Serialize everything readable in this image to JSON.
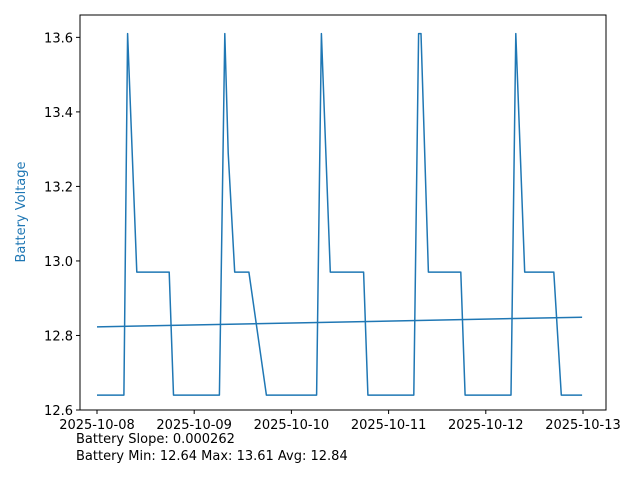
{
  "chart_data": {
    "type": "line",
    "title": "",
    "xlabel": "",
    "ylabel": "Battery Voltage",
    "ylabel_color": "#1f77b4",
    "series_color": "#1f77b4",
    "xlim": [
      "2025-10-08",
      "2025-10-13"
    ],
    "ylim": [
      12.6,
      13.66
    ],
    "x_ticks": [
      "2025-10-08",
      "2025-10-09",
      "2025-10-10",
      "2025-10-11",
      "2025-10-12",
      "2025-10-13"
    ],
    "y_ticks": [
      "12.6",
      "12.8",
      "13.0",
      "13.2",
      "13.4",
      "13.6"
    ],
    "grid": false,
    "series": [
      {
        "values_x": [
          "2025-10-08 00:00",
          "2025-10-08 06:38",
          "2025-10-08 07:34",
          "2025-10-08 09:50",
          "2025-10-08 17:50",
          "2025-10-08 18:53",
          "2025-10-09 06:14",
          "2025-10-09 07:34",
          "2025-10-09 08:24",
          "2025-10-09 10:00",
          "2025-10-09 13:31",
          "2025-10-09 17:50",
          "2025-10-10 06:14",
          "2025-10-10 07:25",
          "2025-10-10 09:36",
          "2025-10-10 17:50",
          "2025-10-10 18:53",
          "2025-10-11 06:14",
          "2025-10-11 07:25",
          "2025-10-11 08:00",
          "2025-10-11 09:50",
          "2025-10-11 17:50",
          "2025-10-11 18:53",
          "2025-10-12 06:14",
          "2025-10-12 07:25",
          "2025-10-12 09:36",
          "2025-10-12 16:48",
          "2025-10-12 18:38",
          "2025-10-12 23:46"
        ],
        "values": [
          12.64,
          12.64,
          13.61,
          12.97,
          12.97,
          12.64,
          12.64,
          13.61,
          13.29,
          12.97,
          12.97,
          12.64,
          12.64,
          13.61,
          12.97,
          12.97,
          12.64,
          12.64,
          13.61,
          13.61,
          12.97,
          12.97,
          12.64,
          12.64,
          13.61,
          12.97,
          12.97,
          12.64,
          12.64
        ]
      },
      {
        "values_x": [
          "2025-10-08 00:00",
          "2025-10-12 23:46"
        ],
        "values": [
          12.823,
          12.849
        ]
      }
    ]
  },
  "stats": {
    "slope_line": "Battery Slope: 0.000262",
    "minmax_line": "Battery Min: 12.64 Max: 13.61 Avg: 12.84"
  }
}
